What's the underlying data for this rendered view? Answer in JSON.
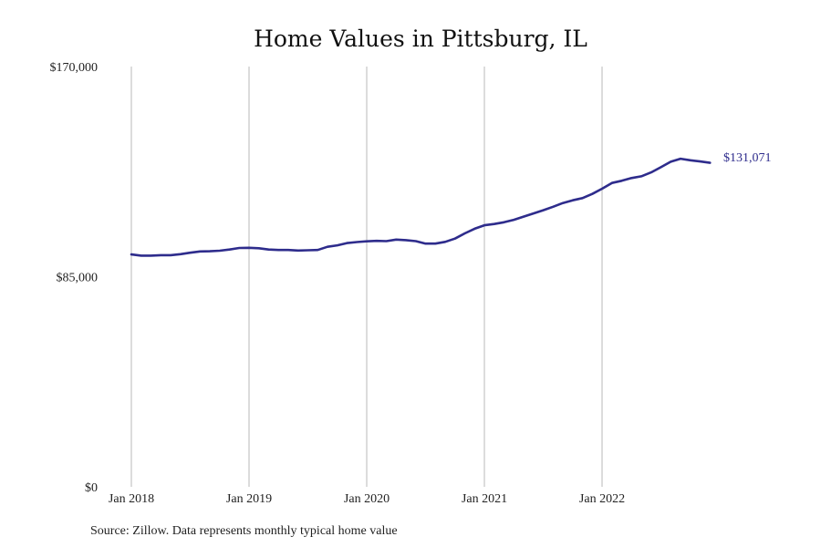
{
  "chart_data": {
    "type": "line",
    "title": "Home Values in Pittsburg, IL",
    "xlabel": "",
    "ylabel": "",
    "ylim": [
      0,
      170000
    ],
    "y_ticks": [
      {
        "value": 0,
        "label": "$0"
      },
      {
        "value": 85000,
        "label": "$85,000"
      },
      {
        "value": 170000,
        "label": "$170,000"
      }
    ],
    "x_ticks": [
      {
        "value": "2018-01",
        "label": "Jan 2018"
      },
      {
        "value": "2019-01",
        "label": "Jan 2019"
      },
      {
        "value": "2020-01",
        "label": "Jan 2020"
      },
      {
        "value": "2021-01",
        "label": "Jan 2021"
      },
      {
        "value": "2022-01",
        "label": "Jan 2022"
      }
    ],
    "grid": {
      "vertical": true,
      "horizontal": false
    },
    "end_label": "$131,071",
    "line_color": "#2e2c8c",
    "series": [
      {
        "x": [
          "2018-01",
          "2018-02",
          "2018-03",
          "2018-04",
          "2018-05",
          "2018-06",
          "2018-07",
          "2018-08",
          "2018-09",
          "2018-10",
          "2018-11",
          "2018-12",
          "2019-01",
          "2019-02",
          "2019-03",
          "2019-04",
          "2019-05",
          "2019-06",
          "2019-07",
          "2019-08",
          "2019-09",
          "2019-10",
          "2019-11",
          "2019-12",
          "2020-01",
          "2020-02",
          "2020-03",
          "2020-04",
          "2020-05",
          "2020-06",
          "2020-07",
          "2020-08",
          "2020-09",
          "2020-10",
          "2020-11",
          "2020-12",
          "2021-01",
          "2021-02",
          "2021-03",
          "2021-04",
          "2021-05",
          "2021-06",
          "2021-07",
          "2021-08",
          "2021-09",
          "2021-10",
          "2021-11",
          "2021-12",
          "2022-01",
          "2022-02",
          "2022-03",
          "2022-04",
          "2022-05",
          "2022-06",
          "2022-07",
          "2022-08",
          "2022-09",
          "2022-10",
          "2022-11",
          "2022-12"
        ],
        "values": [
          94000,
          93500,
          93500,
          93700,
          93700,
          94100,
          94700,
          95200,
          95300,
          95500,
          96000,
          96600,
          96700,
          96500,
          96000,
          95800,
          95800,
          95600,
          95700,
          95800,
          97100,
          97700,
          98600,
          99000,
          99300,
          99500,
          99400,
          100000,
          99800,
          99400,
          98400,
          98400,
          99100,
          100400,
          102500,
          104400,
          105800,
          106300,
          107000,
          108000,
          109300,
          110600,
          111900,
          113300,
          114800,
          115900,
          116800,
          118500,
          120600,
          122900,
          123800,
          124900,
          125600,
          127200,
          129300,
          131500,
          132700,
          132100,
          131600,
          131071
        ]
      }
    ]
  },
  "source_text": "Source: Zillow. Data represents monthly typical home value"
}
